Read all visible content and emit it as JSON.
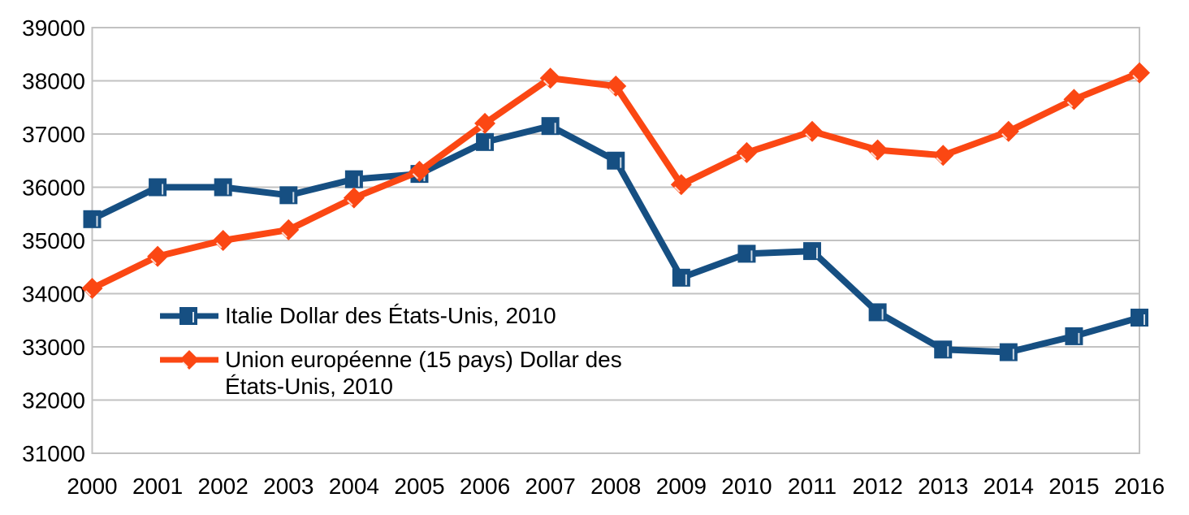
{
  "chart_data": {
    "type": "line",
    "title": "",
    "xlabel": "",
    "ylabel": "",
    "x": [
      "2000",
      "2001",
      "2002",
      "2003",
      "2004",
      "2005",
      "2006",
      "2007",
      "2008",
      "2009",
      "2010",
      "2011",
      "2012",
      "2013",
      "2014",
      "2015",
      "2016"
    ],
    "series": [
      {
        "id": "italie",
        "name": "Italie Dollar des États-Unis, 2010",
        "marker": "square",
        "color": "#164F82",
        "values": [
          35400,
          36000,
          36000,
          35850,
          36150,
          36250,
          36850,
          37150,
          36500,
          34300,
          34750,
          34800,
          33650,
          32950,
          32900,
          33200,
          33550
        ]
      },
      {
        "id": "ue15",
        "name": "Union européenne (15 pays) Dollar des États-Unis, 2010",
        "marker": "diamond",
        "color": "#FB4713",
        "values": [
          34100,
          34700,
          35000,
          35200,
          35800,
          36300,
          37200,
          38050,
          37900,
          36050,
          36650,
          37050,
          36700,
          36600,
          37050,
          37650,
          38150
        ]
      }
    ],
    "ylim": [
      31000,
      39000
    ],
    "yticks": [
      39000,
      38000,
      37000,
      36000,
      35000,
      34000,
      33000,
      32000,
      31000
    ],
    "grid": true,
    "grid_color": "#C2C2C2",
    "text_color": "#000000",
    "background": "#FFFFFF",
    "line_width": 8,
    "legend_position": "inside-bottom-left"
  }
}
